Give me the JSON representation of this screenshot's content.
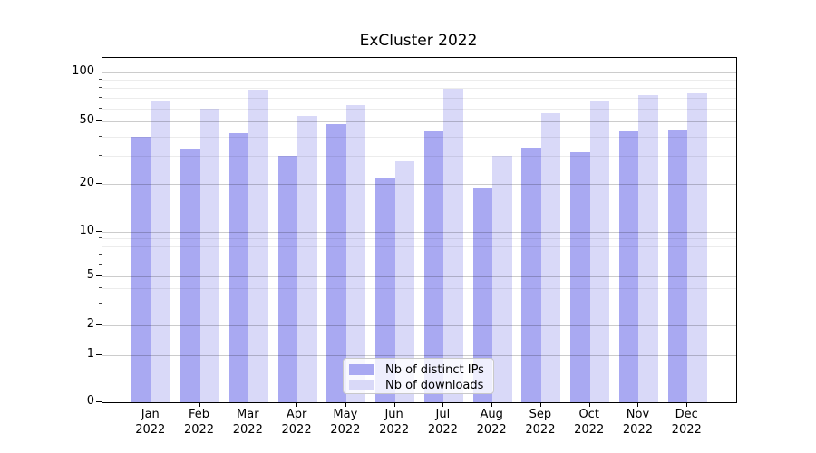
{
  "title": "ExCluster 2022",
  "chart_data": {
    "type": "bar",
    "title": "ExCluster 2022",
    "yscale": "symlog",
    "ylim": [
      0,
      123
    ],
    "grid": true,
    "legend_position": "lower center",
    "categories": [
      "Jan",
      "Feb",
      "Mar",
      "Apr",
      "May",
      "Jun",
      "Jul",
      "Aug",
      "Sep",
      "Oct",
      "Nov",
      "Dec"
    ],
    "x_year_label": "2022",
    "y_major_ticks": [
      0,
      1,
      2,
      5,
      10,
      20,
      50,
      100
    ],
    "y_minor_ticks": [
      3,
      4,
      6,
      7,
      8,
      9,
      30,
      40,
      60,
      70,
      80,
      90
    ],
    "series": [
      {
        "name": "Nb of distinct IPs",
        "color": "#a9a9f2",
        "values": [
          40,
          33,
          42,
          30,
          48,
          22,
          43,
          19,
          34,
          32,
          43,
          44
        ]
      },
      {
        "name": "Nb of downloads",
        "color": "#d9d9f8",
        "values": [
          66,
          60,
          78,
          54,
          63,
          28,
          79,
          30,
          56,
          67,
          73,
          74
        ]
      }
    ]
  }
}
